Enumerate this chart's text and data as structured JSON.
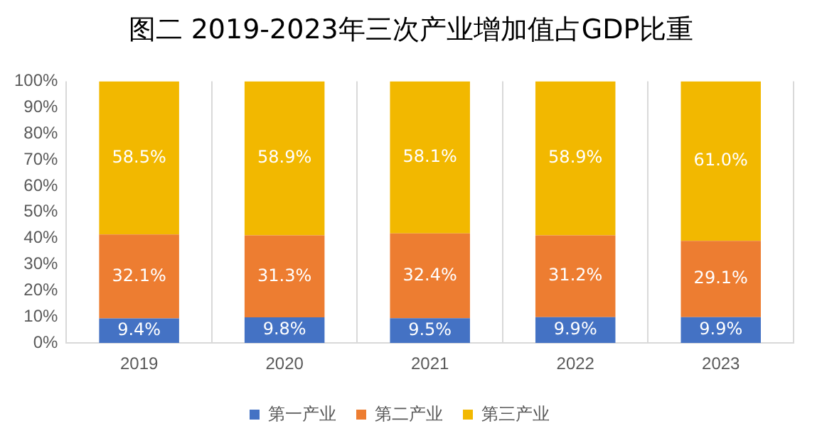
{
  "chart_data": {
    "type": "bar",
    "title": "图二  2019-2023年三次产业增加值占GDP比重",
    "categories": [
      "2019",
      "2020",
      "2021",
      "2022",
      "2023"
    ],
    "stacked": true,
    "ylim": [
      0,
      100
    ],
    "yticks": [
      {
        "value": 0,
        "label": "0%"
      },
      {
        "value": 10,
        "label": "10%"
      },
      {
        "value": 20,
        "label": "20%"
      },
      {
        "value": 30,
        "label": "30%"
      },
      {
        "value": 40,
        "label": "40%"
      },
      {
        "value": 50,
        "label": "50%"
      },
      {
        "value": 60,
        "label": "60%"
      },
      {
        "value": 70,
        "label": "70%"
      },
      {
        "value": 80,
        "label": "80%"
      },
      {
        "value": 90,
        "label": "90%"
      },
      {
        "value": 100,
        "label": "100%"
      }
    ],
    "grid": "x",
    "legend": "bottom",
    "series": [
      {
        "name": "第一产业",
        "color": "#4472c4",
        "values": [
          9.4,
          9.8,
          9.5,
          9.9,
          9.9
        ],
        "value_labels": [
          "9.4%",
          "9.8%",
          "9.5%",
          "9.9%",
          "9.9%"
        ]
      },
      {
        "name": "第二产业",
        "color": "#ed7d31",
        "values": [
          32.1,
          31.3,
          32.4,
          31.2,
          29.1
        ],
        "value_labels": [
          "32.1%",
          "31.3%",
          "32.4%",
          "31.2%",
          "29.1%"
        ]
      },
      {
        "name": "第三产业",
        "color": "#f2b800",
        "values": [
          58.5,
          58.9,
          58.1,
          58.9,
          61.0
        ],
        "value_labels": [
          "58.5%",
          "58.9%",
          "58.1%",
          "58.9%",
          "61.0%"
        ]
      }
    ]
  }
}
